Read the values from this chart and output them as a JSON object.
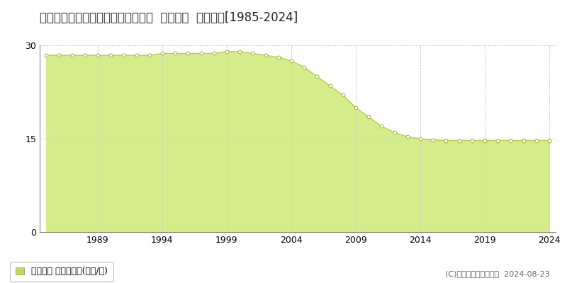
{
  "title": "青森県青森市桜川４丁目１０６２番  地価公示  地価推移[1985-2024]",
  "years": [
    1985,
    1986,
    1987,
    1988,
    1989,
    1990,
    1991,
    1992,
    1993,
    1994,
    1995,
    1996,
    1997,
    1998,
    1999,
    2000,
    2001,
    2002,
    2003,
    2004,
    2005,
    2006,
    2007,
    2008,
    2009,
    2010,
    2011,
    2012,
    2013,
    2014,
    2015,
    2016,
    2017,
    2018,
    2019,
    2020,
    2021,
    2022,
    2023,
    2024
  ],
  "values": [
    28.4,
    28.4,
    28.4,
    28.4,
    28.4,
    28.4,
    28.4,
    28.4,
    28.4,
    28.7,
    28.7,
    28.7,
    28.7,
    28.7,
    29.0,
    29.0,
    28.7,
    28.4,
    28.1,
    27.5,
    26.5,
    25.0,
    23.5,
    22.0,
    20.0,
    18.5,
    17.0,
    16.0,
    15.3,
    15.0,
    14.8,
    14.7,
    14.7,
    14.7,
    14.7,
    14.7,
    14.7,
    14.7,
    14.7,
    14.7
  ],
  "fill_color": "#d4ed8a",
  "line_color": "#b8c832",
  "marker_face": "#ffffff",
  "marker_edge": "#aabb44",
  "bg_color": "#ffffff",
  "plot_bg_color": "#ffffff",
  "grid_color": "#cccccc",
  "ylim": [
    0,
    30
  ],
  "yticks": [
    0,
    15,
    30
  ],
  "xtick_years": [
    1989,
    1994,
    1999,
    2004,
    2009,
    2014,
    2019,
    2024
  ],
  "legend_label": "地価公示 平均坪単価(万円/坪)",
  "legend_color": "#c8d855",
  "copyright_text": "(C)土地価格ドットコム  2024-08-23",
  "title_fontsize": 12,
  "tick_fontsize": 9,
  "legend_fontsize": 9,
  "copyright_fontsize": 8
}
